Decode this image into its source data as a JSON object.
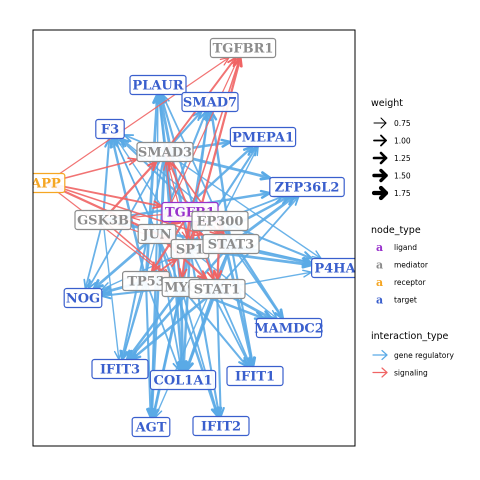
{
  "colors": {
    "ligand": "#9932CC",
    "mediator": "#8C8C8C",
    "receptor": "#F5A623",
    "target": "#3A5FCD",
    "gene_regulatory": "#5AAAE6",
    "signaling": "#F06464"
  },
  "nodes": [
    {
      "id": "TGFBR1",
      "type": "mediator"
    },
    {
      "id": "PLAUR",
      "type": "target"
    },
    {
      "id": "SMAD7",
      "type": "target"
    },
    {
      "id": "F3",
      "type": "target"
    },
    {
      "id": "PMEPA1",
      "type": "target"
    },
    {
      "id": "SMAD3",
      "type": "mediator"
    },
    {
      "id": "APP",
      "type": "receptor"
    },
    {
      "id": "ZFP36L2",
      "type": "target"
    },
    {
      "id": "GSK3B",
      "type": "mediator"
    },
    {
      "id": "TGFB1",
      "type": "ligand"
    },
    {
      "id": "EP300",
      "type": "mediator"
    },
    {
      "id": "JUN",
      "type": "mediator"
    },
    {
      "id": "SP1",
      "type": "mediator"
    },
    {
      "id": "STAT3",
      "type": "mediator"
    },
    {
      "id": "P4HA",
      "type": "target"
    },
    {
      "id": "TP53",
      "type": "mediator"
    },
    {
      "id": "MYC",
      "type": "mediator"
    },
    {
      "id": "STAT1",
      "type": "mediator"
    },
    {
      "id": "NOG",
      "type": "target"
    },
    {
      "id": "MAMDC2",
      "type": "target"
    },
    {
      "id": "IFIT3",
      "type": "target"
    },
    {
      "id": "COL1A1",
      "type": "target"
    },
    {
      "id": "IFIT1",
      "type": "target"
    },
    {
      "id": "AGT",
      "type": "target"
    },
    {
      "id": "IFIT2",
      "type": "target"
    }
  ],
  "edges": {
    "signaling": [
      [
        "APP",
        "TGFBR1"
      ],
      [
        "TGFB1",
        "TGFBR1"
      ],
      [
        "SMAD3",
        "TGFBR1"
      ],
      [
        "SP1",
        "TGFBR1"
      ],
      [
        "JUN",
        "TGFBR1"
      ],
      [
        "APP",
        "SMAD3"
      ],
      [
        "APP",
        "TGFB1"
      ],
      [
        "APP",
        "SP1"
      ],
      [
        "APP",
        "MYC"
      ],
      [
        "APP",
        "STAT3"
      ],
      [
        "TGFB1",
        "SMAD3"
      ],
      [
        "TGFB1",
        "JUN"
      ],
      [
        "TGFB1",
        "SP1"
      ],
      [
        "TGFB1",
        "STAT3"
      ],
      [
        "TGFB1",
        "MYC"
      ],
      [
        "TGFB1",
        "TP53"
      ],
      [
        "TGFB1",
        "GSK3B"
      ],
      [
        "TGFB1",
        "EP300"
      ],
      [
        "TGFB1",
        "STAT1"
      ],
      [
        "GSK3B",
        "SMAD3"
      ],
      [
        "GSK3B",
        "SP1"
      ],
      [
        "GSK3B",
        "MYC"
      ],
      [
        "JUN",
        "SP1"
      ],
      [
        "JUN",
        "STAT1"
      ],
      [
        "SMAD3",
        "SP1"
      ],
      [
        "SMAD3",
        "STAT3"
      ],
      [
        "TP53",
        "SP1"
      ],
      [
        "EP300",
        "STAT1"
      ],
      [
        "MYC",
        "SMAD3"
      ]
    ],
    "gene_regulatory": [
      [
        "SMAD3",
        "PLAUR"
      ],
      [
        "SMAD3",
        "F3"
      ],
      [
        "SMAD3",
        "SMAD7"
      ],
      [
        "SMAD3",
        "PMEPA1"
      ],
      [
        "SMAD3",
        "ZFP36L2"
      ],
      [
        "SMAD3",
        "P4HA"
      ],
      [
        "SMAD3",
        "NOG"
      ],
      [
        "SMAD3",
        "IFIT3"
      ],
      [
        "SMAD3",
        "COL1A1"
      ],
      [
        "SMAD3",
        "AGT"
      ],
      [
        "JUN",
        "PLAUR"
      ],
      [
        "JUN",
        "F3"
      ],
      [
        "JUN",
        "SMAD7"
      ],
      [
        "JUN",
        "PMEPA1"
      ],
      [
        "JUN",
        "NOG"
      ],
      [
        "JUN",
        "IFIT3"
      ],
      [
        "JUN",
        "COL1A1"
      ],
      [
        "JUN",
        "AGT"
      ],
      [
        "JUN",
        "IFIT2"
      ],
      [
        "SP1",
        "PLAUR"
      ],
      [
        "SP1",
        "F3"
      ],
      [
        "SP1",
        "SMAD7"
      ],
      [
        "SP1",
        "PMEPA1"
      ],
      [
        "SP1",
        "ZFP36L2"
      ],
      [
        "SP1",
        "P4HA"
      ],
      [
        "SP1",
        "MAMDC2"
      ],
      [
        "SP1",
        "IFIT1"
      ],
      [
        "SP1",
        "IFIT2"
      ],
      [
        "SP1",
        "COL1A1"
      ],
      [
        "SP1",
        "AGT"
      ],
      [
        "SP1",
        "NOG"
      ],
      [
        "STAT3",
        "PLAUR"
      ],
      [
        "STAT3",
        "F3"
      ],
      [
        "STAT3",
        "SMAD7"
      ],
      [
        "STAT3",
        "ZFP36L2"
      ],
      [
        "STAT3",
        "P4HA"
      ],
      [
        "STAT3",
        "MAMDC2"
      ],
      [
        "STAT3",
        "IFIT1"
      ],
      [
        "STAT3",
        "IFIT3"
      ],
      [
        "STAT3",
        "COL1A1"
      ],
      [
        "STAT3",
        "AGT"
      ],
      [
        "STAT1",
        "IFIT1"
      ],
      [
        "STAT1",
        "IFIT2"
      ],
      [
        "STAT1",
        "IFIT3"
      ],
      [
        "STAT1",
        "MAMDC2"
      ],
      [
        "STAT1",
        "P4HA"
      ],
      [
        "STAT1",
        "ZFP36L2"
      ],
      [
        "STAT1",
        "PLAUR"
      ],
      [
        "STAT1",
        "COL1A1"
      ],
      [
        "MYC",
        "PLAUR"
      ],
      [
        "MYC",
        "F3"
      ],
      [
        "MYC",
        "SMAD7"
      ],
      [
        "MYC",
        "NOG"
      ],
      [
        "MYC",
        "IFIT3"
      ],
      [
        "MYC",
        "COL1A1"
      ],
      [
        "MYC",
        "AGT"
      ],
      [
        "MYC",
        "IFIT2"
      ],
      [
        "MYC",
        "IFIT1"
      ],
      [
        "MYC",
        "MAMDC2"
      ],
      [
        "TP53",
        "NOG"
      ],
      [
        "TP53",
        "IFIT3"
      ],
      [
        "TP53",
        "COL1A1"
      ],
      [
        "TP53",
        "AGT"
      ],
      [
        "TP53",
        "F3"
      ],
      [
        "TP53",
        "PLAUR"
      ],
      [
        "EP300",
        "PMEPA1"
      ],
      [
        "EP300",
        "ZFP36L2"
      ],
      [
        "EP300",
        "P4HA"
      ],
      [
        "EP300",
        "MAMDC2"
      ],
      [
        "EP300",
        "IFIT1"
      ],
      [
        "EP300",
        "F3"
      ],
      [
        "GSK3B",
        "NOG"
      ],
      [
        "GSK3B",
        "F3"
      ],
      [
        "GSK3B",
        "ZFP36L2"
      ],
      [
        "GSK3B",
        "P4HA"
      ],
      [
        "GSK3B",
        "IFIT3"
      ]
    ]
  },
  "legend": {
    "weight": {
      "title": "weight",
      "values": [
        "0.75",
        "1.00",
        "1.25",
        "1.50",
        "1.75"
      ]
    },
    "node_type": {
      "title": "node_type",
      "glyph": "a",
      "items": [
        {
          "label": "ligand",
          "type": "ligand"
        },
        {
          "label": "mediator",
          "type": "mediator"
        },
        {
          "label": "receptor",
          "type": "receptor"
        },
        {
          "label": "target",
          "type": "target"
        }
      ]
    },
    "interaction_type": {
      "title": "interaction_type",
      "items": [
        {
          "label": "gene regulatory",
          "type": "gene_regulatory"
        },
        {
          "label": "signaling",
          "type": "signaling"
        }
      ]
    }
  }
}
